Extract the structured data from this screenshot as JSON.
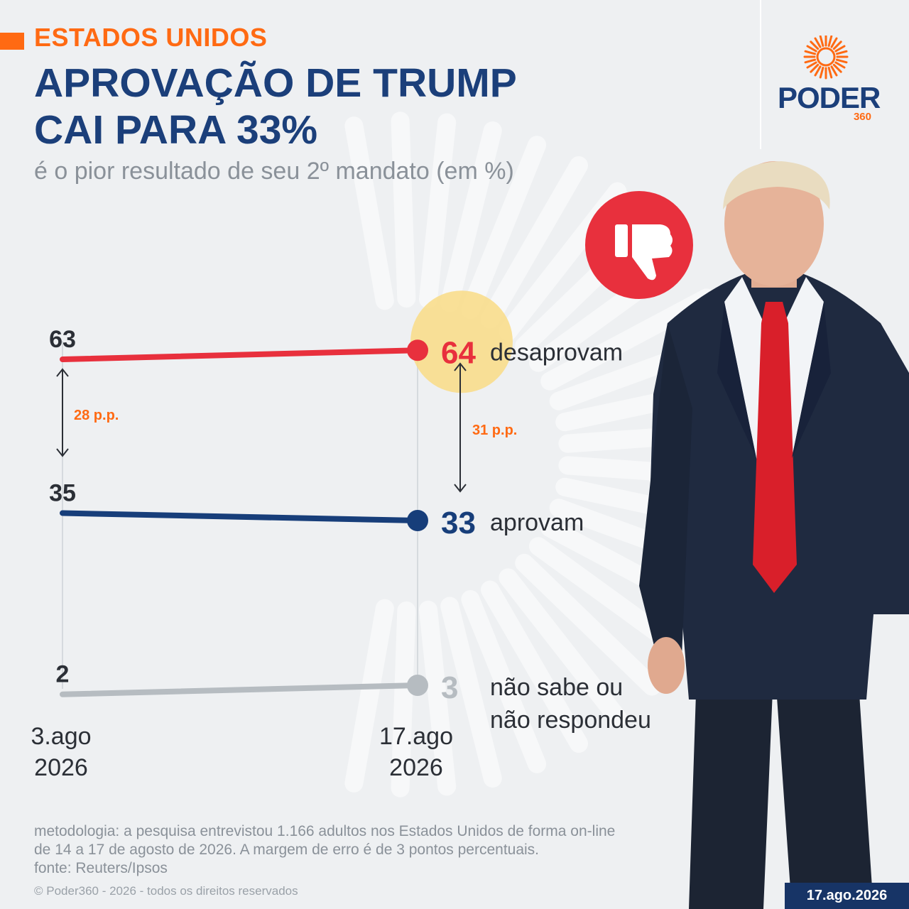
{
  "header": {
    "kicker": "ESTADOS UNIDOS",
    "title_line1": "APROVAÇÃO DE TRUMP",
    "title_line2": "CAI PARA 33%",
    "subtitle": "é o pior resultado de seu 2º mandato (em %)"
  },
  "brand": {
    "name": "PODER",
    "number": "360",
    "color_primary": "#1b3f7a",
    "color_accent": "#ff6a13"
  },
  "icon": {
    "name": "thumbs-down-icon",
    "color": "#e8303d"
  },
  "chart_data": {
    "type": "line",
    "x": [
      "3.ago 2026",
      "17.ago 2026"
    ],
    "x_labels": [
      [
        "3.ago",
        "2026"
      ],
      [
        "17.ago",
        "2026"
      ]
    ],
    "series": [
      {
        "name": "desaprovam",
        "values": [
          63,
          64
        ],
        "value_labels": [
          "63",
          "64"
        ],
        "color": "#e8303d",
        "highlight_last": true
      },
      {
        "name": "aprovam",
        "values": [
          35,
          33
        ],
        "value_labels": [
          "35",
          "33"
        ],
        "color": "#173e7a"
      },
      {
        "name_lines": [
          "não sabe ou",
          "não respondeu"
        ],
        "values": [
          2,
          3
        ],
        "value_labels": [
          "2",
          "3"
        ],
        "color": "#b6bcc1"
      }
    ],
    "annotations": [
      {
        "text": "28 p.p.",
        "at": "3.ago 2026",
        "from": 63,
        "to": 35
      },
      {
        "text": "31 p.p.",
        "at": "17.ago 2026",
        "from": 64,
        "to": 33
      }
    ],
    "ylim": [
      0,
      70
    ],
    "grid": false
  },
  "footer": {
    "methodology_line1": "metodologia: a pesquisa entrevistou 1.166 adultos nos Estados Unidos de forma on-line",
    "methodology_line2": "de 14 a 17 de agosto de 2026. A margem de erro é de 3 pontos percentuais.",
    "source": "fonte: Reuters/Ipsos",
    "copyright": "© Poder360 - 2026 - todos os direitos reservados",
    "date": "17.ago.2026"
  }
}
